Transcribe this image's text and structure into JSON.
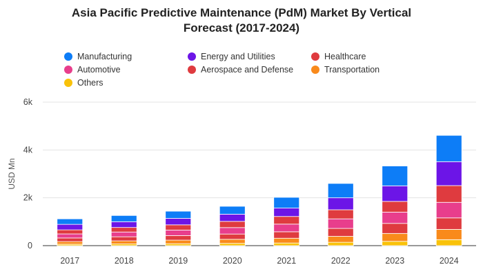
{
  "chart_data": {
    "type": "bar",
    "stacked": true,
    "title_line1": "Asia Pacific Predictive Maintenance (PdM) Market By Vertical",
    "title_line2": "Forecast (2017-2024)",
    "xlabel": "",
    "ylabel": "USD Mn",
    "ylim": [
      0,
      6000
    ],
    "yticks": [
      0,
      2000,
      4000,
      6000
    ],
    "ytick_labels": [
      "0",
      "2k",
      "4k",
      "6k"
    ],
    "categories": [
      "2017",
      "2018",
      "2019",
      "2020",
      "2021",
      "2022",
      "2023",
      "2024"
    ],
    "series": [
      {
        "name": "Others",
        "color": "#F9C20A",
        "values": [
          60,
          70,
          80,
          95,
          110,
          140,
          180,
          250
        ]
      },
      {
        "name": "Transportation",
        "color": "#F98A1B",
        "values": [
          110,
          130,
          150,
          170,
          200,
          250,
          330,
          430
        ]
      },
      {
        "name": "Aerospace and Defense",
        "color": "#DF3B3F",
        "values": [
          150,
          170,
          190,
          220,
          270,
          330,
          420,
          480
        ]
      },
      {
        "name": "Automotive",
        "color": "#E83E8C",
        "values": [
          170,
          200,
          230,
          270,
          320,
          400,
          470,
          650
        ]
      },
      {
        "name": "Healthcare",
        "color": "#DF3B3F",
        "values": [
          170,
          190,
          220,
          260,
          320,
          380,
          450,
          700
        ]
      },
      {
        "name": "Energy and Utilities",
        "color": "#6C15E7",
        "values": [
          230,
          240,
          270,
          300,
          350,
          500,
          650,
          1000
        ]
      },
      {
        "name": "Manufacturing",
        "color": "#0D7DF7",
        "values": [
          230,
          260,
          300,
          330,
          450,
          600,
          830,
          1100
        ]
      }
    ]
  },
  "legend": [
    {
      "label": "Manufacturing",
      "color": "#0D7DF7"
    },
    {
      "label": "Energy and Utilities",
      "color": "#6C15E7"
    },
    {
      "label": "Healthcare",
      "color": "#DF3B3F"
    },
    {
      "label": "Automotive",
      "color": "#E83E8C"
    },
    {
      "label": "Aerospace and Defense",
      "color": "#DF3B3F"
    },
    {
      "label": "Transportation",
      "color": "#F98A1B"
    },
    {
      "label": "Others",
      "color": "#F9C20A"
    }
  ]
}
